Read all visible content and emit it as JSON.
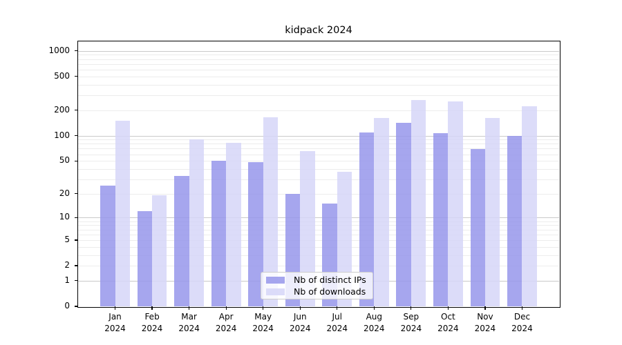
{
  "title": "kidpack 2024",
  "chart_data": {
    "type": "bar",
    "title": "kidpack 2024",
    "categories": [
      "Jan 2024",
      "Feb 2024",
      "Mar 2024",
      "Apr 2024",
      "May 2024",
      "Jun 2024",
      "Jul 2024",
      "Aug 2024",
      "Sep 2024",
      "Oct 2024",
      "Nov 2024",
      "Dec 2024"
    ],
    "series": [
      {
        "name": "Nb of distinct IPs",
        "color": "#9696eb",
        "values": [
          25,
          12,
          33,
          50,
          48,
          20,
          15,
          110,
          142,
          108,
          69,
          100
        ]
      },
      {
        "name": "Nb of downloads",
        "color": "#d6d6f8",
        "values": [
          150,
          19,
          91,
          82,
          166,
          65,
          37,
          163,
          265,
          254,
          161,
          224
        ]
      }
    ],
    "yscale": "log1p",
    "ylim": [
      0,
      1290
    ],
    "y_ticks": [
      0,
      1,
      2,
      5,
      10,
      20,
      50,
      100,
      200,
      500,
      1000
    ],
    "grid": true,
    "legend_position": "lower center",
    "xlabel": "",
    "ylabel": ""
  },
  "colors": {
    "major_gridline": "#c9c9c9",
    "minor_gridline": "#ececec",
    "axis": "#000000",
    "background": "#ffffff"
  }
}
